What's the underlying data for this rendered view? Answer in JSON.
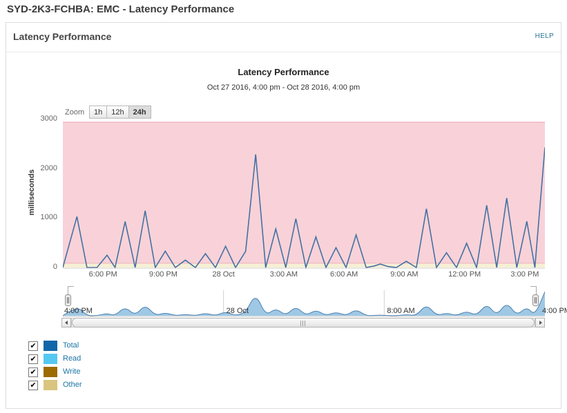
{
  "page": {
    "title": "SYD-2K3-FCHBA: EMC - Latency Performance"
  },
  "panel": {
    "title": "Latency Performance",
    "help_label": "HELP"
  },
  "chart_data": {
    "type": "line",
    "title": "Latency Performance",
    "subtitle": "Oct 27 2016, 4:00 pm - Oct 28 2016, 4:00 pm",
    "ylabel": "milliseconds",
    "ylim": [
      0,
      3000
    ],
    "yticks": [
      "0",
      "1000",
      "2000",
      "3000"
    ],
    "ytick_values": [
      0,
      1000,
      2000,
      3000
    ],
    "x_range_hours": 24,
    "x_start": "Oct 27 2016, 4:00 pm",
    "x_end": "Oct 28 2016, 4:00 pm",
    "xticks": [
      {
        "label": "6:00 PM",
        "hour": 2
      },
      {
        "label": "9:00 PM",
        "hour": 5
      },
      {
        "label": "28 Oct",
        "hour": 8
      },
      {
        "label": "3:00 AM",
        "hour": 11
      },
      {
        "label": "6:00 AM",
        "hour": 14
      },
      {
        "label": "9:00 AM",
        "hour": 17
      },
      {
        "label": "12:00 PM",
        "hour": 20
      },
      {
        "label": "3:00 PM",
        "hour": 23
      }
    ],
    "zoom": {
      "label": "Zoom",
      "options": [
        "1h",
        "12h",
        "24h"
      ],
      "selected": "24h"
    },
    "bands": [
      {
        "name": "warning",
        "from": 0,
        "to": 80,
        "color": "#f6efd4"
      },
      {
        "name": "critical",
        "from": 80,
        "to": 2950,
        "color": "#f8d2d8",
        "edge": "#f0b3be"
      }
    ],
    "series": [
      {
        "name": "Total",
        "color": "#4470a4",
        "points": [
          [
            0,
            0
          ],
          [
            0.7,
            1030
          ],
          [
            1.2,
            0
          ],
          [
            1.7,
            0
          ],
          [
            2.2,
            250
          ],
          [
            2.6,
            0
          ],
          [
            3.1,
            930
          ],
          [
            3.6,
            0
          ],
          [
            4.1,
            1150
          ],
          [
            4.6,
            0
          ],
          [
            5.1,
            330
          ],
          [
            5.6,
            0
          ],
          [
            6.1,
            150
          ],
          [
            6.6,
            0
          ],
          [
            7.1,
            280
          ],
          [
            7.6,
            0
          ],
          [
            8.1,
            430
          ],
          [
            8.6,
            0
          ],
          [
            9.1,
            330
          ],
          [
            9.6,
            2290
          ],
          [
            10.1,
            0
          ],
          [
            10.6,
            780
          ],
          [
            11.1,
            0
          ],
          [
            11.6,
            990
          ],
          [
            12.1,
            0
          ],
          [
            12.6,
            620
          ],
          [
            13.1,
            0
          ],
          [
            13.6,
            400
          ],
          [
            14.1,
            0
          ],
          [
            14.6,
            660
          ],
          [
            15.1,
            0
          ],
          [
            15.5,
            30
          ],
          [
            15.8,
            70
          ],
          [
            16.2,
            20
          ],
          [
            16.6,
            0
          ],
          [
            17.1,
            125
          ],
          [
            17.6,
            0
          ],
          [
            18.1,
            1190
          ],
          [
            18.6,
            0
          ],
          [
            19.1,
            300
          ],
          [
            19.6,
            0
          ],
          [
            20.1,
            490
          ],
          [
            20.6,
            0
          ],
          [
            21.1,
            1260
          ],
          [
            21.6,
            0
          ],
          [
            22.1,
            1405
          ],
          [
            22.6,
            0
          ],
          [
            23.1,
            935
          ],
          [
            23.5,
            0
          ],
          [
            24,
            2430
          ]
        ]
      }
    ],
    "legend": [
      {
        "label": "Total",
        "color": "#1166a9",
        "checked": true
      },
      {
        "label": "Read",
        "color": "#55c8f2",
        "checked": true
      },
      {
        "label": "Write",
        "color": "#9c6a00",
        "checked": true
      },
      {
        "label": "Other",
        "color": "#d9c57f",
        "checked": true
      }
    ],
    "navigator": {
      "fill": "#9fc8e4",
      "stroke": "#4a7fae",
      "gridline_hours": [
        8,
        16
      ],
      "labels": [
        {
          "label": "4:00 PM",
          "hour": 0
        },
        {
          "label": "28 Oct",
          "hour": 8
        },
        {
          "label": "8:00 AM",
          "hour": 16
        },
        {
          "label": "4:00 PM",
          "hour": 24
        }
      ]
    },
    "checkmark": "✔"
  }
}
